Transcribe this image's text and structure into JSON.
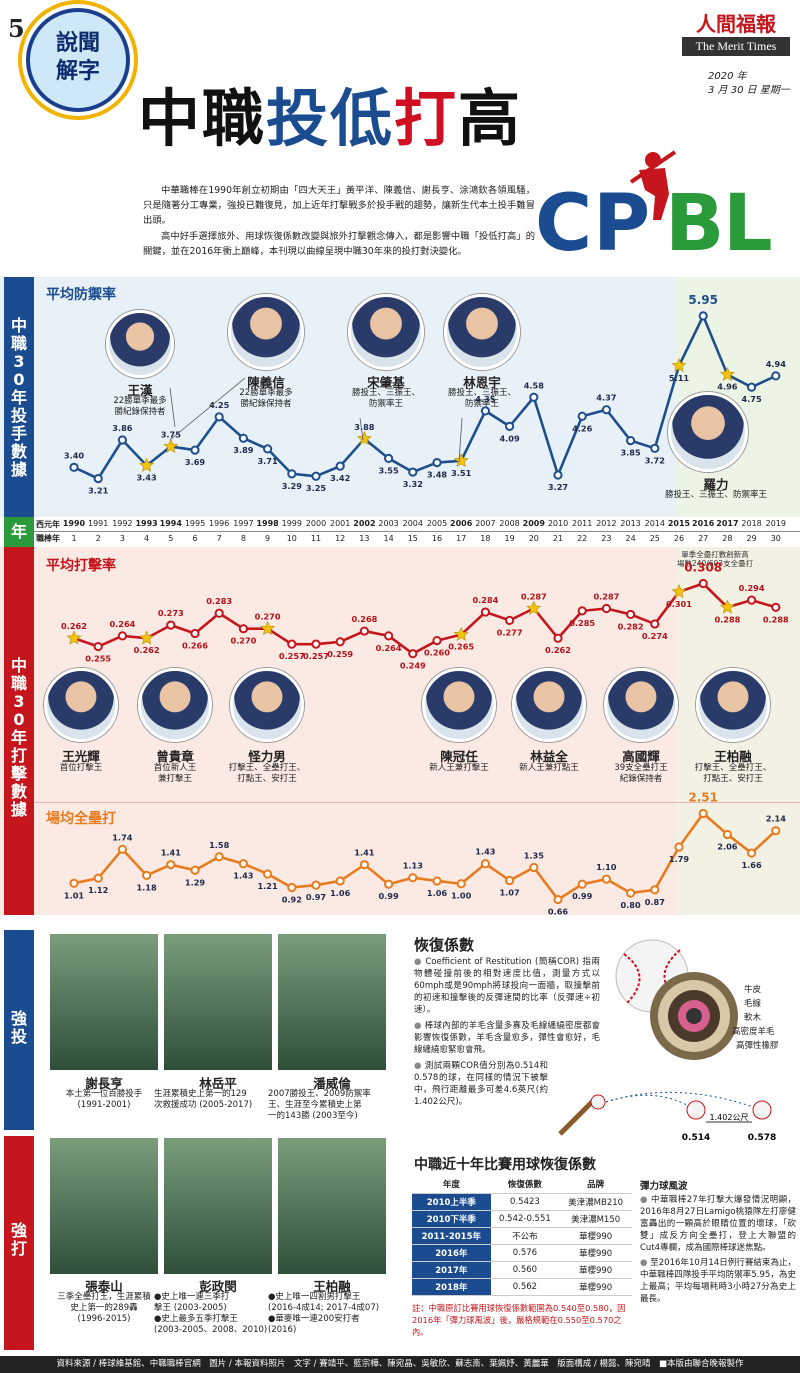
{
  "header": {
    "page_number": "5",
    "badge": [
      "說聞",
      "解字"
    ],
    "title_parts": [
      {
        "t": "中職",
        "c": "#111"
      },
      {
        "t": "投低",
        "c": "#1b4c8f"
      },
      {
        "t": "打",
        "c": "#d01020"
      },
      {
        "t": "高",
        "c": "#111"
      }
    ],
    "brand_cn": "人間福報",
    "brand_en": "The Merit Times",
    "date_line1": "2020 年",
    "date_line2": "3 月 30 日 星期一",
    "intro": [
      "中華職棒在1990年創立初期由「四大天王」黃平洋、陳義信、謝長亨、涂鴻欽各領風騷，只是隨著分工專業，強投已難復見，加上近年打擊戰多於投手戰的趨勢，讓新生代本土投手難冒出頭。",
      "高中好手選擇旅外、用球恢復係數改變與旅外打擊觀念傳入，都是影響中職「投低打高」的關鍵，並在2016年衝上巔峰，本刊現以曲線呈現中職30年來的投打對決變化。"
    ],
    "logo_letters": [
      "C",
      "P",
      "B",
      "L"
    ]
  },
  "pitching_side": "中職30年投手數據",
  "batting_side": "中職30年打擊數據",
  "year_side": "年",
  "year_row_label": "西元年",
  "season_row_label": "職棒年",
  "years": [
    "1990",
    "1991",
    "1992",
    "1993",
    "1994",
    "1995",
    "1996",
    "1997",
    "1998",
    "1999",
    "2000",
    "2001",
    "2002",
    "2003",
    "2004",
    "2005",
    "2006",
    "2007",
    "2008",
    "2009",
    "2010",
    "2011",
    "2012",
    "2013",
    "2014",
    "2015",
    "2016",
    "2017",
    "2018",
    "2019"
  ],
  "seasons": [
    "1",
    "2",
    "3",
    "4",
    "5",
    "6",
    "7",
    "8",
    "9",
    "10",
    "11",
    "12",
    "13",
    "14",
    "15",
    "16",
    "17",
    "18",
    "19",
    "20",
    "21",
    "22",
    "23",
    "24",
    "25",
    "26",
    "27",
    "28",
    "29",
    "30"
  ],
  "bold_years": [
    "1990",
    "1993",
    "1994",
    "1998",
    "2002",
    "2006",
    "2009",
    "2015",
    "2016",
    "2017"
  ],
  "chart_data": [
    {
      "type": "line",
      "title": "平均防禦率",
      "x": [
        1990,
        1991,
        1992,
        1993,
        1994,
        1995,
        1996,
        1997,
        1998,
        1999,
        2000,
        2001,
        2002,
        2003,
        2004,
        2005,
        2006,
        2007,
        2008,
        2009,
        2010,
        2011,
        2012,
        2013,
        2014,
        2015,
        2016,
        2017,
        2018,
        2019
      ],
      "values": [
        3.4,
        3.21,
        3.86,
        3.43,
        3.75,
        3.69,
        4.25,
        3.89,
        3.71,
        3.29,
        3.25,
        3.42,
        3.88,
        3.55,
        3.32,
        3.48,
        3.51,
        4.35,
        4.09,
        4.58,
        3.27,
        4.26,
        4.37,
        3.85,
        3.72,
        5.11,
        5.95,
        4.96,
        4.75,
        4.94
      ],
      "labels": [
        "3.40",
        "3.21",
        "3.86",
        "3.43",
        "3.75",
        "3.69",
        "4.25",
        "3.89",
        "3.71",
        "3.29",
        "3.25",
        "3.42",
        "3.88",
        "3.55",
        "3.32",
        "3.48",
        "3.51",
        "4.35",
        "4.09",
        "4.58",
        "3.27",
        "4.26",
        "4.37",
        "3.85",
        "3.72",
        "5.11",
        "5.95",
        "4.96",
        "4.75",
        "4.94"
      ],
      "stars": [
        1993,
        1994,
        2002,
        2006,
        2015,
        2017
      ],
      "color": "#1f4e8c"
    },
    {
      "type": "line",
      "title": "平均打擊率",
      "x": [
        1990,
        1991,
        1992,
        1993,
        1994,
        1995,
        1996,
        1997,
        1998,
        1999,
        2000,
        2001,
        2002,
        2003,
        2004,
        2005,
        2006,
        2007,
        2008,
        2009,
        2010,
        2011,
        2012,
        2013,
        2014,
        2015,
        2016,
        2017,
        2018,
        2019
      ],
      "values": [
        0.262,
        0.255,
        0.264,
        0.262,
        0.273,
        0.266,
        0.283,
        0.27,
        0.27,
        0.257,
        0.257,
        0.259,
        0.268,
        0.264,
        0.249,
        0.26,
        0.265,
        0.284,
        0.277,
        0.287,
        0.262,
        0.285,
        0.287,
        0.282,
        0.274,
        0.301,
        0.308,
        0.288,
        0.294,
        0.288
      ],
      "labels": [
        "0.262",
        "0.255",
        "0.264",
        "0.262",
        "0.273",
        "0.266",
        "0.283",
        "0.270",
        "0.270",
        "0.257",
        "0.257",
        "0.259",
        "0.268",
        "0.264",
        "0.249",
        "0.260",
        "0.265",
        "0.284",
        "0.277",
        "0.287",
        "0.262",
        "0.285",
        "0.287",
        "0.282",
        "0.274",
        "0.301",
        "0.308",
        "0.288",
        "0.294",
        "0.288"
      ],
      "stars": [
        1990,
        1993,
        1998,
        2006,
        2009,
        2015,
        2017
      ],
      "color": "#c4161c"
    },
    {
      "type": "line",
      "title": "場均全壘打",
      "x": [
        1990,
        1991,
        1992,
        1993,
        1994,
        1995,
        1996,
        1997,
        1998,
        1999,
        2000,
        2001,
        2002,
        2003,
        2004,
        2005,
        2006,
        2007,
        2008,
        2009,
        2010,
        2011,
        2012,
        2013,
        2014,
        2015,
        2016,
        2017,
        2018,
        2019
      ],
      "values": [
        1.01,
        1.12,
        1.74,
        1.18,
        1.41,
        1.29,
        1.58,
        1.43,
        1.21,
        0.92,
        0.97,
        1.06,
        1.41,
        0.99,
        1.13,
        1.06,
        1.0,
        1.43,
        1.07,
        1.35,
        0.66,
        0.99,
        1.1,
        0.8,
        0.87,
        1.79,
        2.51,
        2.06,
        1.66,
        2.14
      ],
      "labels": [
        "1.01",
        "1.12",
        "1.74",
        "1.18",
        "1.41",
        "1.29",
        "1.58",
        "1.43",
        "1.21",
        "0.92",
        "0.97",
        "1.06",
        "1.41",
        "0.99",
        "1.13",
        "1.06",
        "1.00",
        "1.43",
        "1.07",
        "1.35",
        "0.66",
        "0.99",
        "1.10",
        "0.80",
        "0.87",
        "1.79",
        "2.51",
        "2.06",
        "1.66",
        "2.14"
      ],
      "color": "#e87b1e"
    }
  ],
  "pitchers_top": [
    {
      "name": "王漢",
      "desc": [
        "22勝單季最多",
        "勝紀錄保持者"
      ]
    },
    {
      "name": "陳義信",
      "desc": [
        "22勝單季最多",
        "勝紀錄保持者"
      ]
    },
    {
      "name": "宋肇基",
      "desc": [
        "勝投王、三振王、",
        "防禦率王"
      ]
    },
    {
      "name": "林恩宇",
      "desc": [
        "勝投王、三振王、",
        "防禦率王"
      ]
    },
    {
      "name": "羅力",
      "desc": [
        "勝投王、三振王、防禦率王"
      ]
    }
  ],
  "hitters": [
    {
      "name": "王光輝",
      "desc": [
        "首位打擊王"
      ]
    },
    {
      "name": "曾貴章",
      "desc": [
        "首位新人王",
        "兼打擊王"
      ]
    },
    {
      "name": "怪力男",
      "desc": [
        "打擊王、全壘打王、",
        "打點王、安打王"
      ]
    },
    {
      "name": "陳冠任",
      "desc": [
        "新人王兼打擊王"
      ]
    },
    {
      "name": "林益全",
      "desc": [
        "新人王兼打點王"
      ]
    },
    {
      "name": "高國輝",
      "desc": [
        "39支全壘打王",
        "紀錄保持者"
      ]
    },
    {
      "name": "王柏融",
      "desc": [
        "打擊王、全壘打王、",
        "打點王、安打王"
      ]
    }
  ],
  "hr_note": [
    "單季全壘打數創新高",
    "場數240/603支全壘打"
  ],
  "strong_pitch_label": "強投",
  "strong_bat_label": "強打",
  "strong_pitchers": [
    {
      "name": "謝長亨",
      "desc": [
        "本土第一位百勝投手",
        "(1991-2001)"
      ]
    },
    {
      "name": "林岳平",
      "desc": [
        "生涯累積史上第一的129",
        "次救援成功 (2005-2017)"
      ]
    },
    {
      "name": "潘威倫",
      "desc": [
        "2007勝投王、2009防禦率",
        "王、生涯至今累積史上第",
        "一的143勝 (2003至今)"
      ]
    }
  ],
  "strong_hitters": [
    {
      "name": "張泰山",
      "desc": [
        "三季全壘打王，生涯累積",
        "史上第一的289轟",
        "(1996-2015)"
      ]
    },
    {
      "name": "彭政閔",
      "desc": [
        "●史上唯一連三季打",
        "擊王 (2003-2005)",
        "●史上最多五季打擊王",
        "(2003-2005、2008、2010)"
      ]
    },
    {
      "name": "王柏融",
      "desc": [
        "●史上唯一四割男打擊王",
        "(2016-4成14; 2017-4成07)",
        "●華麥唯一連200安打者",
        "(2016)"
      ]
    }
  ],
  "cor": {
    "title": "恢復係數",
    "bullets": [
      "Coefficient of Restitution (簡稱COR) 指兩物體碰撞前後的相對速度比值，測量方式以60mph或是90mph將球投向一面牆，取撞擊前的初速和撞擊後的反彈速間的比率（反彈速÷初速）。",
      "棒球內部的羊毛含量多寡及毛線纏繞密度都會影響恢復係數，羊毛含量愈多，彈性會愈好，毛線纏繞愈緊愈會飛。",
      "測試兩顆COR值分別為0.514和0.578的球，在同樣的情況下被擊中，飛行距離最多可差4.6英尺(約1.402公尺)。"
    ],
    "layers": [
      "牛皮",
      "毛線",
      "軟木",
      "高密度羊毛",
      "高彈性橡膠"
    ],
    "distance": "1.402公尺",
    "ball_a": "0.514",
    "ball_b": "0.578"
  },
  "ball_table": {
    "title": "中職近十年比賽用球恢復係數",
    "headers": [
      "年度",
      "恢復係數",
      "品牌"
    ],
    "rows": [
      [
        "2010上半季",
        "0.5423",
        "美津濃MB210"
      ],
      [
        "2010下半季",
        "0.542-0.551",
        "美津濃M150"
      ],
      [
        "2011-2015年",
        "不公布",
        "華櫻990"
      ],
      [
        "2016年",
        "0.576",
        "華櫻990"
      ],
      [
        "2017年",
        "0.560",
        "華櫻990"
      ],
      [
        "2018年",
        "0.562",
        "華櫻990"
      ]
    ],
    "note": "註：中職原訂比賽用球恢復係數範圍為0.540至0.580，因2016年「彈力球風波」後，嚴格規範在0.550至0.570之內。"
  },
  "controversy": {
    "title": "彈力球風波",
    "bullets": [
      "中華職棒27年打擊大爆發情況明顯，2016年8月27日Lamigo桃猿隊左打廖健富轟出的一顆高於眼睛位置的壞球，「砍雙」成反方向全壘打，登上大聯盟的Cut4專欄，成為國際棒球迷焦點。",
      "至2016年10月14日例行賽結束為止，中華職棒四隊投手平均防禦率5.95，為史上最高；平均每場耗時3小時27分為史上最長。"
    ]
  },
  "footer": "資料來源 / 棒球維基館、中職職棒官網　圖片 / 本報資料照片　文字 / 賽靖平、藍宗樺、陳宛晶、吳敏欣、蘇志斎、葉姵妤、黃麗華　版面構成 / 楊懿、陳宛晴　■本版由聯合晚報製作"
}
